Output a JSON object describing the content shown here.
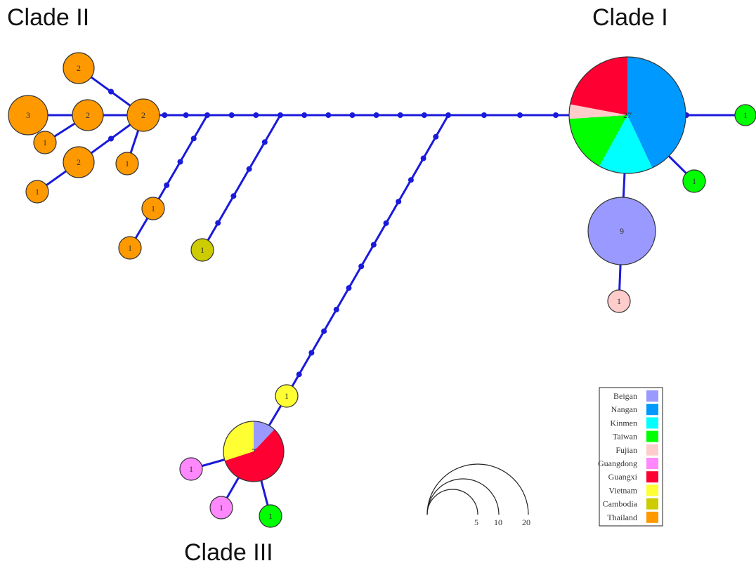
{
  "colors": {
    "edge": "#1a1adb",
    "node_stroke": "#333333",
    "Beigan": "#9999ff",
    "Nangan": "#0099ff",
    "Kinmen": "#00ffff",
    "Taiwan": "#00ff00",
    "Fujian": "#ffcccc",
    "Guangdong": "#ff88ff",
    "Guangxi": "#ff0033",
    "Vietnam": "#ffff33",
    "Cambodia": "#cccc00",
    "Thailand": "#ff9900"
  },
  "clades": {
    "clade_1": "Clade I",
    "clade_2": "Clade II",
    "clade_3": "Clade III"
  },
  "legend": [
    {
      "label": "Beigan",
      "color": "#9999ff"
    },
    {
      "label": "Nangan",
      "color": "#0099ff"
    },
    {
      "label": "Kinmen",
      "color": "#00ffff"
    },
    {
      "label": "Taiwan",
      "color": "#00ff00"
    },
    {
      "label": "Fujian",
      "color": "#ffcccc"
    },
    {
      "label": "Guangdong",
      "color": "#ff88ff"
    },
    {
      "label": "Guangxi",
      "color": "#ff0033"
    },
    {
      "label": "Vietnam",
      "color": "#ffff33"
    },
    {
      "label": "Cambodia",
      "color": "#cccc00"
    },
    {
      "label": "Thailand",
      "color": "#ff9900"
    }
  ],
  "size_scale": [
    "5",
    "10",
    "20"
  ],
  "nodes": [
    {
      "id": "c1_hub",
      "count": "27",
      "pie": [
        {
          "pop": "Nangan",
          "share": 0.43
        },
        {
          "pop": "Kinmen",
          "share": 0.15
        },
        {
          "pop": "Taiwan",
          "share": 0.16
        },
        {
          "pop": "Fujian",
          "share": 0.04
        },
        {
          "pop": "Guangxi",
          "share": 0.22
        }
      ]
    },
    {
      "id": "c1_taiwan_right",
      "count": "1",
      "pop": "Taiwan"
    },
    {
      "id": "c1_taiwan_lower",
      "count": "1",
      "pop": "Taiwan"
    },
    {
      "id": "c1_beigan",
      "count": "9",
      "pop": "Beigan"
    },
    {
      "id": "c1_fujian",
      "count": "1",
      "pop": "Fujian"
    },
    {
      "id": "c2_hub",
      "count": "2",
      "pop": "Thailand"
    },
    {
      "id": "c2_top",
      "count": "2",
      "pop": "Thailand"
    },
    {
      "id": "c2_mid",
      "count": "2",
      "pop": "Thailand"
    },
    {
      "id": "c2_big",
      "count": "3",
      "pop": "Thailand"
    },
    {
      "id": "c2_small_a",
      "count": "1",
      "pop": "Thailand"
    },
    {
      "id": "c2_lower",
      "count": "2",
      "pop": "Thailand"
    },
    {
      "id": "c2_small_b",
      "count": "1",
      "pop": "Thailand"
    },
    {
      "id": "c2_small_c",
      "count": "1",
      "pop": "Thailand"
    },
    {
      "id": "c2_branch_a",
      "count": "1",
      "pop": "Thailand"
    },
    {
      "id": "c2_branch_b",
      "count": "1",
      "pop": "Thailand"
    },
    {
      "id": "c2_cambodia",
      "count": "1",
      "pop": "Cambodia"
    },
    {
      "id": "c3_vietnam",
      "count": "1",
      "pop": "Vietnam"
    },
    {
      "id": "c3_hub",
      "count": "7",
      "pie": [
        {
          "pop": "Beigan",
          "share": 0.12
        },
        {
          "pop": "Guangxi",
          "share": 0.58
        },
        {
          "pop": "Vietnam",
          "share": 0.3
        }
      ]
    },
    {
      "id": "c3_gd_left",
      "count": "1",
      "pop": "Guangdong"
    },
    {
      "id": "c3_gd_low",
      "count": "1",
      "pop": "Guangdong"
    },
    {
      "id": "c3_taiwan",
      "count": "1",
      "pop": "Taiwan"
    }
  ]
}
